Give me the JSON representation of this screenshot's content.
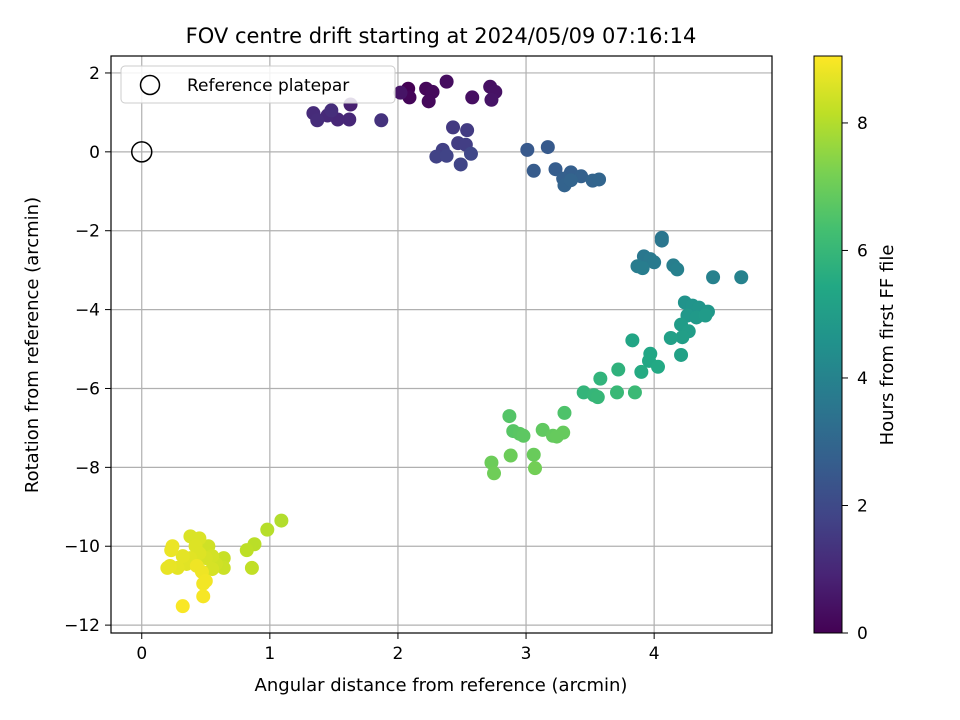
{
  "chart_data": {
    "type": "scatter",
    "title": "FOV centre drift starting at 2024/05/09 07:16:14",
    "xlabel": "Angular distance from reference (arcmin)",
    "ylabel": "Rotation from reference (arcmin)",
    "xlim": [
      -0.24,
      4.92
    ],
    "ylim": [
      -12.2,
      2.43
    ],
    "xticks": [
      0,
      1,
      2,
      3,
      4
    ],
    "yticks": [
      -12,
      -10,
      -8,
      -6,
      -4,
      -2,
      0,
      2
    ],
    "grid": true,
    "legend": {
      "placement": "top-left",
      "entries": [
        "Reference platepar"
      ]
    },
    "reference_point": {
      "x": 0,
      "y": 0,
      "label": "Reference platepar"
    },
    "colorbar": {
      "label": "Hours from first FF file",
      "colormap": "viridis",
      "range": [
        0,
        9.05
      ],
      "ticks": [
        0,
        2,
        4,
        6,
        8
      ]
    },
    "points": [
      {
        "x": 2.08,
        "y": 1.6,
        "h": 0.0
      },
      {
        "x": 2.22,
        "y": 1.6,
        "h": 0.15
      },
      {
        "x": 2.09,
        "y": 1.38,
        "h": 0.1
      },
      {
        "x": 2.27,
        "y": 1.52,
        "h": 0.2
      },
      {
        "x": 2.24,
        "y": 1.28,
        "h": 0.2
      },
      {
        "x": 2.38,
        "y": 1.78,
        "h": 0.3
      },
      {
        "x": 2.58,
        "y": 1.38,
        "h": 0.35
      },
      {
        "x": 2.72,
        "y": 1.65,
        "h": 0.4
      },
      {
        "x": 2.76,
        "y": 1.52,
        "h": 0.45
      },
      {
        "x": 2.73,
        "y": 1.32,
        "h": 0.5
      },
      {
        "x": 2.02,
        "y": 1.5,
        "h": 0.5
      },
      {
        "x": 1.63,
        "y": 1.2,
        "h": 0.8
      },
      {
        "x": 1.62,
        "y": 0.82,
        "h": 1.0
      },
      {
        "x": 1.53,
        "y": 0.82,
        "h": 1.0
      },
      {
        "x": 1.45,
        "y": 0.92,
        "h": 1.05
      },
      {
        "x": 1.34,
        "y": 0.98,
        "h": 1.1
      },
      {
        "x": 1.37,
        "y": 0.8,
        "h": 1.15
      },
      {
        "x": 1.48,
        "y": 1.05,
        "h": 1.2
      },
      {
        "x": 1.87,
        "y": 0.8,
        "h": 1.3
      },
      {
        "x": 2.43,
        "y": 0.62,
        "h": 1.5
      },
      {
        "x": 2.54,
        "y": 0.55,
        "h": 1.55
      },
      {
        "x": 2.47,
        "y": 0.22,
        "h": 1.6
      },
      {
        "x": 2.53,
        "y": 0.18,
        "h": 1.65
      },
      {
        "x": 2.35,
        "y": 0.05,
        "h": 1.7
      },
      {
        "x": 2.3,
        "y": -0.12,
        "h": 1.75
      },
      {
        "x": 2.38,
        "y": -0.1,
        "h": 1.8
      },
      {
        "x": 2.49,
        "y": -0.32,
        "h": 1.85
      },
      {
        "x": 2.57,
        "y": -0.05,
        "h": 1.9
      },
      {
        "x": 3.01,
        "y": 0.05,
        "h": 2.5
      },
      {
        "x": 3.17,
        "y": 0.12,
        "h": 2.55
      },
      {
        "x": 3.06,
        "y": -0.48,
        "h": 2.6
      },
      {
        "x": 3.23,
        "y": -0.44,
        "h": 2.65
      },
      {
        "x": 3.35,
        "y": -0.52,
        "h": 2.7
      },
      {
        "x": 3.29,
        "y": -0.68,
        "h": 2.75
      },
      {
        "x": 3.43,
        "y": -0.62,
        "h": 2.8
      },
      {
        "x": 3.3,
        "y": -0.85,
        "h": 2.85
      },
      {
        "x": 3.52,
        "y": -0.73,
        "h": 2.9
      },
      {
        "x": 3.57,
        "y": -0.7,
        "h": 2.95
      },
      {
        "x": 3.35,
        "y": -0.72,
        "h": 2.9
      },
      {
        "x": 4.06,
        "y": -2.18,
        "h": 3.5
      },
      {
        "x": 4.06,
        "y": -2.25,
        "h": 3.55
      },
      {
        "x": 3.92,
        "y": -2.65,
        "h": 3.6
      },
      {
        "x": 3.97,
        "y": -2.72,
        "h": 3.65
      },
      {
        "x": 4.0,
        "y": -2.8,
        "h": 3.7
      },
      {
        "x": 3.87,
        "y": -2.9,
        "h": 3.75
      },
      {
        "x": 3.91,
        "y": -2.95,
        "h": 3.8
      },
      {
        "x": 4.15,
        "y": -2.88,
        "h": 3.85
      },
      {
        "x": 4.18,
        "y": -2.98,
        "h": 3.9
      },
      {
        "x": 4.46,
        "y": -3.18,
        "h": 3.95
      },
      {
        "x": 4.68,
        "y": -3.18,
        "h": 4.0
      },
      {
        "x": 4.24,
        "y": -3.82,
        "h": 4.6
      },
      {
        "x": 4.3,
        "y": -3.9,
        "h": 4.65
      },
      {
        "x": 4.35,
        "y": -3.95,
        "h": 4.7
      },
      {
        "x": 4.42,
        "y": -4.05,
        "h": 4.75
      },
      {
        "x": 4.26,
        "y": -4.15,
        "h": 4.8
      },
      {
        "x": 4.33,
        "y": -4.2,
        "h": 4.85
      },
      {
        "x": 4.4,
        "y": -4.15,
        "h": 4.9
      },
      {
        "x": 4.21,
        "y": -4.38,
        "h": 4.95
      },
      {
        "x": 4.27,
        "y": -4.55,
        "h": 5.0
      },
      {
        "x": 4.22,
        "y": -4.7,
        "h": 5.05
      },
      {
        "x": 4.13,
        "y": -4.72,
        "h": 5.1
      },
      {
        "x": 4.21,
        "y": -5.15,
        "h": 5.15
      },
      {
        "x": 3.83,
        "y": -4.78,
        "h": 5.3
      },
      {
        "x": 3.97,
        "y": -5.12,
        "h": 5.35
      },
      {
        "x": 3.96,
        "y": -5.3,
        "h": 5.4
      },
      {
        "x": 4.03,
        "y": -5.45,
        "h": 5.45
      },
      {
        "x": 3.9,
        "y": -5.58,
        "h": 5.5
      },
      {
        "x": 3.72,
        "y": -5.52,
        "h": 5.8
      },
      {
        "x": 3.58,
        "y": -5.75,
        "h": 5.85
      },
      {
        "x": 3.45,
        "y": -6.1,
        "h": 5.9
      },
      {
        "x": 3.53,
        "y": -6.17,
        "h": 5.95
      },
      {
        "x": 3.56,
        "y": -6.22,
        "h": 6.0
      },
      {
        "x": 3.71,
        "y": -6.1,
        "h": 6.05
      },
      {
        "x": 3.85,
        "y": -6.1,
        "h": 6.1
      },
      {
        "x": 3.3,
        "y": -6.62,
        "h": 6.5
      },
      {
        "x": 2.87,
        "y": -6.7,
        "h": 6.6
      },
      {
        "x": 2.9,
        "y": -7.08,
        "h": 6.65
      },
      {
        "x": 2.95,
        "y": -7.15,
        "h": 6.7
      },
      {
        "x": 2.98,
        "y": -7.2,
        "h": 6.75
      },
      {
        "x": 3.13,
        "y": -7.05,
        "h": 6.8
      },
      {
        "x": 3.21,
        "y": -7.2,
        "h": 6.85
      },
      {
        "x": 3.29,
        "y": -7.12,
        "h": 6.9
      },
      {
        "x": 3.24,
        "y": -7.22,
        "h": 6.9
      },
      {
        "x": 3.06,
        "y": -7.68,
        "h": 6.95
      },
      {
        "x": 2.88,
        "y": -7.7,
        "h": 7.0
      },
      {
        "x": 2.73,
        "y": -7.88,
        "h": 7.0
      },
      {
        "x": 2.75,
        "y": -8.15,
        "h": 7.05
      },
      {
        "x": 3.07,
        "y": -8.02,
        "h": 7.1
      },
      {
        "x": 1.09,
        "y": -9.35,
        "h": 8.0
      },
      {
        "x": 0.98,
        "y": -9.58,
        "h": 8.05
      },
      {
        "x": 0.88,
        "y": -9.95,
        "h": 8.1
      },
      {
        "x": 0.82,
        "y": -10.1,
        "h": 8.15
      },
      {
        "x": 0.86,
        "y": -10.55,
        "h": 8.2
      },
      {
        "x": 0.64,
        "y": -10.3,
        "h": 8.3
      },
      {
        "x": 0.64,
        "y": -10.55,
        "h": 8.35
      },
      {
        "x": 0.58,
        "y": -10.45,
        "h": 8.4
      },
      {
        "x": 0.52,
        "y": -10.0,
        "h": 8.4
      },
      {
        "x": 0.55,
        "y": -10.25,
        "h": 8.45
      },
      {
        "x": 0.5,
        "y": -10.3,
        "h": 8.5
      },
      {
        "x": 0.55,
        "y": -10.58,
        "h": 8.5
      },
      {
        "x": 0.45,
        "y": -9.8,
        "h": 8.55
      },
      {
        "x": 0.38,
        "y": -9.75,
        "h": 8.55
      },
      {
        "x": 0.42,
        "y": -10.0,
        "h": 8.6
      },
      {
        "x": 0.45,
        "y": -10.18,
        "h": 8.6
      },
      {
        "x": 0.38,
        "y": -10.3,
        "h": 8.65
      },
      {
        "x": 0.35,
        "y": -10.45,
        "h": 8.65
      },
      {
        "x": 0.32,
        "y": -10.25,
        "h": 8.7
      },
      {
        "x": 0.28,
        "y": -10.55,
        "h": 8.7
      },
      {
        "x": 0.22,
        "y": -10.5,
        "h": 8.75
      },
      {
        "x": 0.2,
        "y": -10.55,
        "h": 8.75
      },
      {
        "x": 0.23,
        "y": -10.1,
        "h": 8.8
      },
      {
        "x": 0.24,
        "y": -10.0,
        "h": 8.8
      },
      {
        "x": 0.43,
        "y": -10.5,
        "h": 8.85
      },
      {
        "x": 0.47,
        "y": -10.65,
        "h": 8.85
      },
      {
        "x": 0.5,
        "y": -10.88,
        "h": 8.9
      },
      {
        "x": 0.48,
        "y": -10.95,
        "h": 8.9
      },
      {
        "x": 0.48,
        "y": -11.27,
        "h": 8.95
      },
      {
        "x": 0.32,
        "y": -11.52,
        "h": 9.0
      }
    ]
  }
}
